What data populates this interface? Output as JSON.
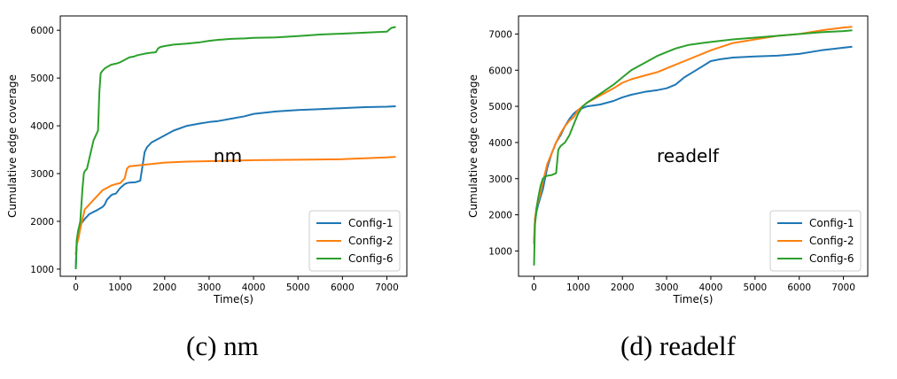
{
  "captions": {
    "c": "(c) nm",
    "d": "(d) readelf"
  },
  "chart_data": [
    {
      "type": "line",
      "annotation": "nm",
      "xlabel": "Time(s)",
      "ylabel": "Cumulative edge coverage",
      "xlim": [
        -350,
        7450
      ],
      "ylim": [
        850,
        6300
      ],
      "xticks": [
        0,
        1000,
        2000,
        3000,
        4000,
        5000,
        6000,
        7000
      ],
      "yticks": [
        1000,
        2000,
        3000,
        4000,
        5000,
        6000
      ],
      "grid": false,
      "legend": "bottom-right",
      "series": [
        {
          "name": "Config-1",
          "color": "#1f77b4",
          "x": [
            0,
            20,
            60,
            120,
            200,
            300,
            400,
            450,
            600,
            650,
            700,
            800,
            850,
            900,
            1000,
            1100,
            1150,
            1200,
            1350,
            1450,
            1500,
            1550,
            1600,
            1700,
            1800,
            1900,
            2000,
            2200,
            2500,
            2800,
            3000,
            3200,
            3500,
            3800,
            4000,
            4500,
            5000,
            5500,
            6000,
            6500,
            7000,
            7200
          ],
          "y": [
            1000,
            1500,
            1750,
            1950,
            2050,
            2150,
            2200,
            2220,
            2300,
            2350,
            2450,
            2550,
            2570,
            2580,
            2700,
            2780,
            2800,
            2810,
            2820,
            2850,
            3150,
            3450,
            3550,
            3650,
            3700,
            3750,
            3800,
            3900,
            4000,
            4050,
            4080,
            4100,
            4150,
            4200,
            4250,
            4300,
            4330,
            4350,
            4370,
            4390,
            4400,
            4410
          ]
        },
        {
          "name": "Config-2",
          "color": "#ff7f0e",
          "x": [
            0,
            20,
            60,
            100,
            150,
            200,
            250,
            300,
            400,
            500,
            600,
            700,
            800,
            900,
            1000,
            1050,
            1100,
            1150,
            1200,
            1500,
            2000,
            2500,
            3000,
            3500,
            4000,
            5000,
            6000,
            6500,
            7000,
            7200
          ],
          "y": [
            1300,
            1500,
            1650,
            1850,
            2050,
            2250,
            2300,
            2350,
            2450,
            2550,
            2650,
            2700,
            2750,
            2780,
            2800,
            2850,
            2900,
            3100,
            3150,
            3180,
            3230,
            3250,
            3260,
            3270,
            3280,
            3290,
            3300,
            3320,
            3340,
            3350
          ]
        },
        {
          "name": "Config-6",
          "color": "#2ca02c",
          "x": [
            0,
            20,
            50,
            100,
            150,
            180,
            200,
            250,
            300,
            350,
            400,
            450,
            500,
            530,
            560,
            600,
            650,
            700,
            800,
            900,
            1000,
            1100,
            1200,
            1300,
            1400,
            1500,
            1600,
            1700,
            1800,
            1850,
            1900,
            2000,
            2200,
            2500,
            2800,
            3000,
            3200,
            3500,
            3800,
            4000,
            4500,
            5000,
            5500,
            6000,
            6500,
            7000,
            7100,
            7200
          ],
          "y": [
            1000,
            1600,
            1800,
            2000,
            2700,
            3000,
            3050,
            3100,
            3300,
            3500,
            3700,
            3800,
            3900,
            4700,
            5100,
            5150,
            5200,
            5230,
            5280,
            5300,
            5330,
            5380,
            5430,
            5450,
            5480,
            5500,
            5520,
            5530,
            5540,
            5620,
            5650,
            5670,
            5700,
            5720,
            5750,
            5780,
            5800,
            5820,
            5830,
            5840,
            5850,
            5880,
            5910,
            5930,
            5950,
            5970,
            6050,
            6070
          ]
        }
      ]
    },
    {
      "type": "line",
      "annotation": "readelf",
      "xlabel": "Time(s)",
      "ylabel": "Cumulative edge coverage",
      "xlim": [
        -350,
        7550
      ],
      "ylim": [
        300,
        7500
      ],
      "xticks": [
        0,
        1000,
        2000,
        3000,
        4000,
        5000,
        6000,
        7000
      ],
      "yticks": [
        1000,
        2000,
        3000,
        4000,
        5000,
        6000,
        7000
      ],
      "grid": false,
      "legend": "bottom-right",
      "series": [
        {
          "name": "Config-1",
          "color": "#1f77b4",
          "x": [
            0,
            20,
            60,
            100,
            150,
            200,
            300,
            400,
            500,
            600,
            700,
            800,
            900,
            1000,
            1100,
            1200,
            1500,
            1800,
            2000,
            2200,
            2500,
            2800,
            3000,
            3200,
            3400,
            3600,
            3800,
            4000,
            4200,
            4500,
            5000,
            5500,
            6000,
            6500,
            7000,
            7200
          ],
          "y": [
            1200,
            1800,
            2100,
            2300,
            2500,
            2700,
            3300,
            3700,
            4000,
            4200,
            4450,
            4650,
            4800,
            4900,
            4950,
            5000,
            5050,
            5150,
            5250,
            5320,
            5400,
            5450,
            5500,
            5600,
            5800,
            5950,
            6100,
            6250,
            6300,
            6350,
            6380,
            6400,
            6450,
            6550,
            6620,
            6650
          ]
        },
        {
          "name": "Config-2",
          "color": "#ff7f0e",
          "x": [
            0,
            20,
            60,
            100,
            150,
            200,
            300,
            400,
            500,
            600,
            700,
            800,
            900,
            1000,
            1200,
            1500,
            1800,
            2000,
            2200,
            2500,
            2800,
            3000,
            3200,
            3500,
            3800,
            4000,
            4500,
            5000,
            5500,
            6000,
            6500,
            7000,
            7200
          ],
          "y": [
            1200,
            1900,
            2200,
            2400,
            2600,
            2900,
            3400,
            3700,
            4000,
            4250,
            4450,
            4600,
            4700,
            4900,
            5100,
            5300,
            5500,
            5650,
            5750,
            5850,
            5950,
            6050,
            6150,
            6300,
            6450,
            6550,
            6750,
            6850,
            6950,
            7000,
            7100,
            7180,
            7200
          ]
        },
        {
          "name": "Config-6",
          "color": "#2ca02c",
          "x": [
            0,
            20,
            60,
            100,
            150,
            200,
            250,
            300,
            400,
            500,
            550,
            600,
            700,
            800,
            900,
            1000,
            1100,
            1200,
            1500,
            1800,
            2000,
            2200,
            2500,
            2800,
            3000,
            3200,
            3500,
            3800,
            4000,
            4500,
            5000,
            5500,
            6000,
            6500,
            7000,
            7200
          ],
          "y": [
            600,
            1700,
            2200,
            2500,
            2800,
            3000,
            3050,
            3080,
            3100,
            3150,
            3800,
            3900,
            4000,
            4200,
            4500,
            4800,
            5000,
            5100,
            5350,
            5600,
            5800,
            6000,
            6200,
            6400,
            6500,
            6600,
            6700,
            6750,
            6780,
            6850,
            6900,
            6950,
            7000,
            7050,
            7080,
            7100
          ]
        }
      ]
    }
  ]
}
